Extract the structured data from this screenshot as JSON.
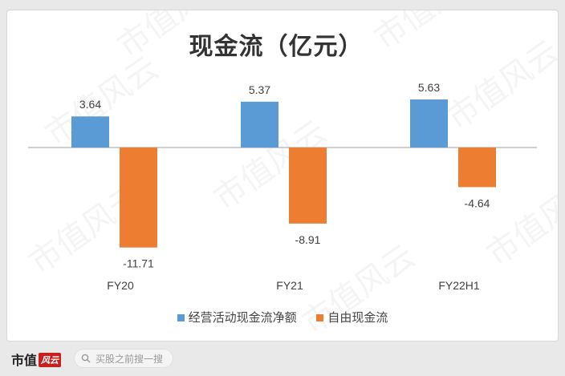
{
  "chart_data": {
    "type": "bar",
    "title": "现金流（亿元）",
    "categories": [
      "FY20",
      "FY21",
      "FY22H1"
    ],
    "series": [
      {
        "name": "经营活动现金流净额",
        "values": [
          3.64,
          5.37,
          5.63
        ],
        "labels": [
          "3.64",
          "5.37",
          "5.63"
        ]
      },
      {
        "name": "自由现金流",
        "values": [
          -11.71,
          -8.91,
          -4.64
        ],
        "labels": [
          "-11.71",
          "-8.91",
          "-4.64"
        ]
      }
    ],
    "ylim": [
      -12,
      6
    ],
    "grid": false,
    "legend": "bottom",
    "xlabel": "",
    "ylabel": ""
  },
  "colors": {
    "series1": "#5b9bd5",
    "series2": "#ed7d31",
    "axis": "#bfbfbf"
  },
  "watermark": "市值风云",
  "footer": {
    "brand": "市值",
    "brand_mark": "风云",
    "search_placeholder": "买股之前搜一搜",
    "search_icon": "search-icon"
  }
}
